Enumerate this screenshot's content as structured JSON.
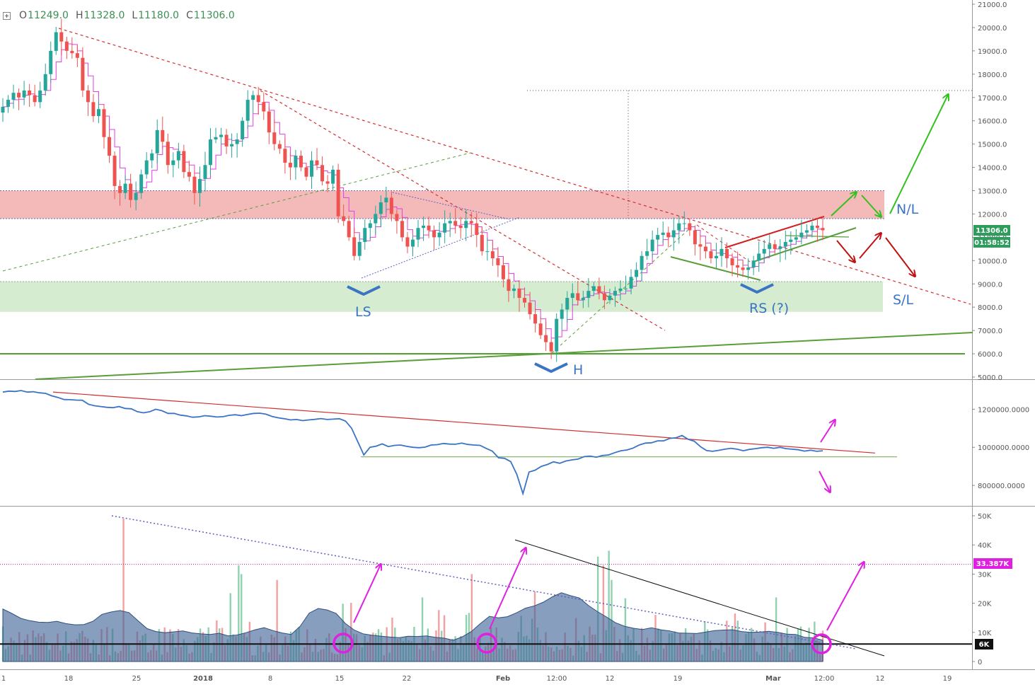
{
  "ohlc": {
    "o_label": "O",
    "o": "11249.0",
    "h_label": "H",
    "h": "11328.0",
    "l_label": "L",
    "l": "11180.0",
    "c_label": "C",
    "c": "11306.0"
  },
  "colors": {
    "up": "#26a69a",
    "down": "#ef5350",
    "ma": "#e040e0",
    "cmf": "#3a74c4",
    "volume_area": "#3d6397",
    "resistance_zone": "#f0a0a0",
    "support_zone": "#c8e6c0",
    "trend_red": "#d03030",
    "trend_green": "#5a9e3a",
    "magenta": "#e020e0"
  },
  "x_axis": {
    "ticks": [
      "1",
      "18",
      "25",
      "2018",
      "8",
      "15",
      "22",
      "Feb",
      "12:00",
      "12",
      "19",
      "Mar",
      "12:00",
      "12",
      "19"
    ]
  },
  "annotations": {
    "ls": "LS",
    "head": "H",
    "rs": "RS (?)",
    "neckline": "N/L",
    "stoploss": "S/L"
  },
  "badges": {
    "price": "11306.0",
    "countdown": "01:58:52",
    "volume_ref": "33.387K",
    "volume_line": "6K"
  },
  "chart_data": [
    {
      "type": "candlestick",
      "title": "",
      "ylim": [
        5000,
        21000
      ],
      "y_ticks": [
        "21000.0",
        "20000.0",
        "19000.0",
        "18000.0",
        "17000.0",
        "16000.0",
        "15000.0",
        "14000.0",
        "13000.0",
        "12000.0",
        "11000.0",
        "10000.0",
        "9000.0",
        "8000.0",
        "7000.0",
        "6000.0",
        "5000.0"
      ],
      "y_tick_values": [
        21000,
        20000,
        19000,
        18000,
        17000,
        16000,
        15000,
        14000,
        13000,
        12000,
        11000,
        10000,
        9000,
        8000,
        7000,
        6000,
        5000
      ],
      "closes": [
        16600,
        16900,
        17200,
        17000,
        17300,
        17100,
        16800,
        17300,
        18000,
        19000,
        19800,
        19400,
        19000,
        18900,
        18700,
        17300,
        16800,
        16200,
        16500,
        15300,
        14500,
        13200,
        12900,
        13300,
        12600,
        12900,
        13700,
        14300,
        14600,
        15600,
        15100,
        14100,
        14300,
        14700,
        13800,
        13600,
        12900,
        13500,
        14100,
        15200,
        15300,
        15400,
        14900,
        15000,
        15200,
        16000,
        16900,
        17100,
        16800,
        16400,
        15500,
        15000,
        14800,
        14200,
        14000,
        14500,
        14000,
        13600,
        14300,
        14100,
        13400,
        13300,
        13900,
        11900,
        11700,
        11000,
        10200,
        10800,
        11400,
        11600,
        12000,
        12500,
        12700,
        12000,
        11700,
        11000,
        10600,
        10900,
        11400,
        11500,
        11300,
        11000,
        11200,
        11600,
        11700,
        11500,
        11400,
        11700,
        11600,
        11100,
        10400,
        10400,
        10100,
        9800,
        9200,
        8700,
        8800,
        8400,
        8200,
        7700,
        7300,
        6800,
        6500,
        6100,
        7500,
        7900,
        8400,
        8600,
        8300,
        8400,
        8700,
        8900,
        8600,
        8300,
        8500,
        8700,
        8800,
        8800,
        9300,
        9600,
        10200,
        10400,
        10900,
        11100,
        11200,
        11000,
        11300,
        11600,
        11600,
        11300,
        10700,
        10600,
        10400,
        10100,
        10200,
        10500,
        10100,
        9800,
        9700,
        9600,
        9700,
        10000,
        10300,
        10500,
        10700,
        10500,
        10600,
        10800,
        10900,
        11000,
        11200,
        11300,
        11500,
        11400,
        11300
      ],
      "events": [
        "11249.0",
        "11328.0",
        "11180.0",
        "11306.0"
      ],
      "horizontal_levels": [
        17300,
        13000,
        11800,
        9100,
        6000
      ],
      "resistance_zone": [
        11800,
        13000
      ],
      "support_zone": [
        7800,
        9100
      ]
    },
    {
      "type": "line",
      "title": "",
      "ylim": [
        700000,
        1350000
      ],
      "y_ticks": [
        "1200000.0000",
        "1000000.0000",
        "800000.0000"
      ],
      "y_tick_values": [
        1200000,
        1000000,
        800000
      ],
      "values": [
        1290000,
        1295000,
        1293000,
        1298000,
        1290000,
        1292000,
        1286000,
        1283000,
        1270000,
        1262000,
        1251000,
        1250000,
        1248000,
        1247000,
        1226000,
        1218000,
        1214000,
        1210000,
        1208000,
        1214000,
        1204000,
        1202000,
        1187000,
        1181000,
        1187000,
        1200000,
        1192000,
        1178000,
        1178000,
        1169000,
        1165000,
        1158000,
        1160000,
        1166000,
        1163000,
        1159000,
        1161000,
        1168000,
        1171000,
        1166000,
        1173000,
        1178000,
        1179000,
        1174000,
        1162000,
        1155000,
        1150000,
        1144000,
        1146000,
        1140000,
        1144000,
        1147000,
        1151000,
        1146000,
        1148000,
        1150000,
        1138000,
        1100000,
        1030000,
        960000,
        1000000,
        1006000,
        1018000,
        1004000,
        1010000,
        1012000,
        1005000,
        1000000,
        998000,
        1001000,
        1012000,
        1014000,
        1020000,
        1017000,
        1016000,
        1022000,
        1015000,
        1012000,
        1010000,
        994000,
        980000,
        945000,
        942000,
        925000,
        858000,
        757000,
        870000,
        880000,
        900000,
        910000,
        924000,
        916000,
        928000,
        934000,
        938000,
        951000,
        954000,
        948000,
        957000,
        960000,
        972000,
        982000,
        986000,
        996000,
        1012000,
        1022000,
        1024000,
        1034000,
        1034000,
        1047000,
        1050000,
        1062000,
        1042000,
        1032000,
        1004000,
        983000,
        979000,
        984000,
        990000,
        995000,
        990000,
        982000,
        989000,
        993000,
        998000,
        1000000,
        995000,
        1000000,
        993000,
        990000,
        987000,
        980000,
        985000,
        979000,
        982000
      ],
      "trendline_start": 1290000,
      "trendline_end": 970000,
      "support_level": 950000
    },
    {
      "type": "bar",
      "title": "",
      "ylim": [
        -3000,
        52000
      ],
      "y_ticks": [
        "50K",
        "40K",
        "30K",
        "20K",
        "10K",
        "0"
      ],
      "y_tick_values": [
        50000,
        40000,
        30000,
        20000,
        10000,
        0
      ],
      "volume_ma_envelope": [
        18000,
        16500,
        14800,
        14000,
        13500,
        13400,
        13800,
        13000,
        12600,
        12700,
        13800,
        16200,
        17000,
        17500,
        16800,
        14000,
        11300,
        10300,
        9900,
        10200,
        10500,
        9800,
        9500,
        9300,
        9700,
        8800,
        9100,
        9900,
        10900,
        11600,
        10600,
        9800,
        9300,
        12100,
        16600,
        18200,
        17700,
        16500,
        13100,
        10800,
        9500,
        9000,
        8700,
        8400,
        8200,
        8700,
        8600,
        8800,
        8300,
        8000,
        7300,
        8500,
        10300,
        13000,
        15500,
        15000,
        15400,
        16700,
        18300,
        19100,
        20400,
        22200,
        23600,
        22600,
        21800,
        19200,
        17100,
        15300,
        13300,
        12100,
        11400,
        11000,
        11600,
        10900,
        10500,
        9800,
        9700,
        9600,
        10100,
        10600,
        10800,
        10900,
        10300,
        10000,
        10100,
        10400,
        10000,
        9400,
        9300,
        8300,
        8100,
        7300
      ],
      "reference_level": 33387,
      "baseline_level": 6000
    }
  ]
}
